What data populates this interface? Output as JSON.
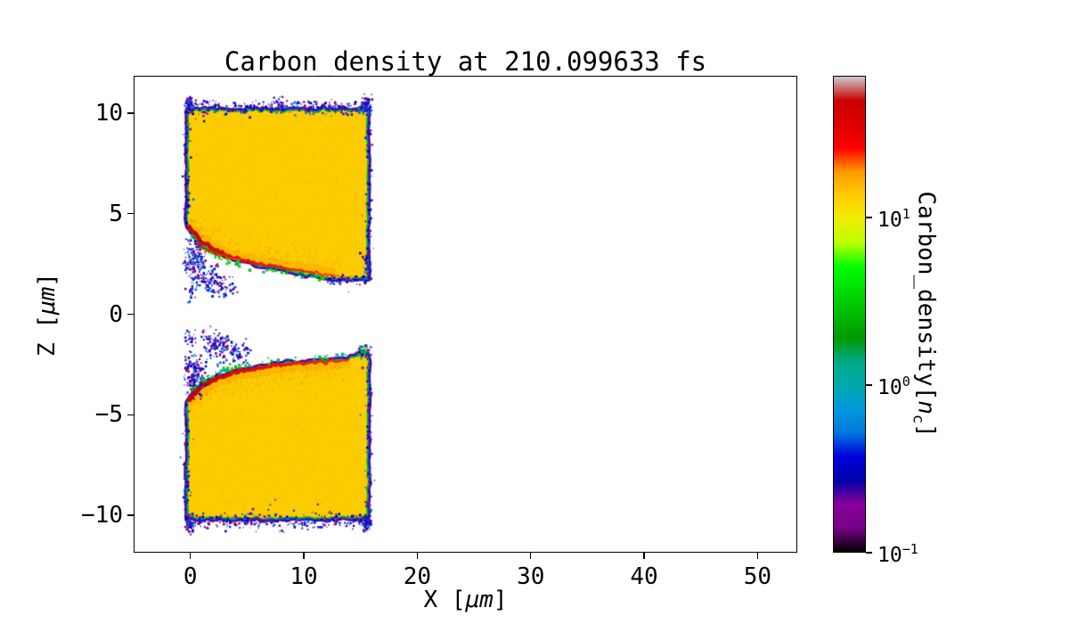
{
  "chart_data": {
    "type": "heatmap",
    "title": "Carbon_density at 210.099633 fs",
    "xlabel": "X [μm]",
    "ylabel": "Z [μm]",
    "xlabel_parts": {
      "prefix": "X [",
      "unit": "μm",
      "suffix": "]"
    },
    "ylabel_parts": {
      "prefix": "Z [",
      "unit": "μm",
      "suffix": "]"
    },
    "xlim": [
      -5,
      53.5
    ],
    "ylim": [
      -11.86,
      11.86
    ],
    "xticks": [
      0,
      10,
      20,
      30,
      40,
      50
    ],
    "yticks": [
      10,
      5,
      0,
      -5,
      -10
    ],
    "grid": false,
    "background": "#ffffff",
    "colorbar": {
      "label_parts": {
        "prefix": "Carbon_density[",
        "var": "n",
        "sub": "c",
        "suffix": "]"
      },
      "scale": "log",
      "vmin": 0.1,
      "vmax": 70,
      "ticks": [
        {
          "label_base": "10",
          "label_exp": "1",
          "value": 10
        },
        {
          "label_base": "10",
          "label_exp": "0",
          "value": 1
        },
        {
          "label_base": "10",
          "label_exp": "−1",
          "value": 0.1
        }
      ],
      "colormap": "nipy_spectral",
      "stops": [
        [
          0,
          "#000000"
        ],
        [
          0.05,
          "#770088"
        ],
        [
          0.1,
          "#880099"
        ],
        [
          0.15,
          "#0000AA"
        ],
        [
          0.2,
          "#0000DD"
        ],
        [
          0.25,
          "#0077DD"
        ],
        [
          0.3,
          "#0099DD"
        ],
        [
          0.35,
          "#00AAAA"
        ],
        [
          0.4,
          "#00AA88"
        ],
        [
          0.45,
          "#009900"
        ],
        [
          0.5,
          "#00BB00"
        ],
        [
          0.55,
          "#00DD00"
        ],
        [
          0.6,
          "#00FF00"
        ],
        [
          0.65,
          "#BBFF00"
        ],
        [
          0.7,
          "#EEEE00"
        ],
        [
          0.75,
          "#FFCC00"
        ],
        [
          0.8,
          "#FF9900"
        ],
        [
          0.85,
          "#FF0000"
        ],
        [
          0.9,
          "#DD0000"
        ],
        [
          0.95,
          "#CC0000"
        ],
        [
          1,
          "#CCCCCC"
        ]
      ]
    },
    "structures": {
      "description": "Two carbon slab targets (~11 n_c interior, x≈0–15.5 μm) separated by a vacuum gap around z≈0. Inner channel surfaces are eroded toward the left with red high-density filaments (~30 n_c) along the channel walls, green/cyan density fall-off fringes at all edges, and sparse low-density (~0.1–0.5 n_c) purple/blue plasma speckle around the borders and in the gap near x<5.",
      "interior_density_nc": 11,
      "palettes": {
        "cold": [
          "#770088",
          "#880099",
          "#0000AA",
          "#0000CC",
          "#2A00C8",
          "#0033CC",
          "#0077DD"
        ],
        "green": [
          "#00BB00",
          "#00DD00",
          "#00AA88",
          "#33CC00",
          "#00AAAA"
        ]
      },
      "interior_noise": {
        "n": 1100,
        "colors": [
          "rgba(255,170,0,0.22)",
          "rgba(255,220,0,0.30)",
          "rgba(250,140,0,0.18)"
        ]
      },
      "edge_glow_noise": {
        "n": 320,
        "color": "255,140,0",
        "alpha_min": 0.15,
        "alpha_max": 0.5
      },
      "blocks": [
        {
          "name": "upper-slab",
          "fill": "#FBCD00",
          "z_far": 10.1,
          "outline": [
            [
              -0.15,
              10.1
            ],
            [
              15.55,
              10.1
            ],
            [
              15.55,
              1.85
            ],
            [
              12.4,
              1.85
            ],
            [
              11.4,
              1.95
            ],
            [
              10.2,
              2.08
            ],
            [
              9.0,
              2.2
            ],
            [
              7.8,
              2.32
            ],
            [
              6.6,
              2.45
            ],
            [
              5.4,
              2.6
            ],
            [
              4.2,
              2.78
            ],
            [
              3.2,
              2.95
            ],
            [
              2.3,
              3.15
            ],
            [
              1.5,
              3.4
            ],
            [
              0.8,
              3.7
            ],
            [
              0.2,
              4.05
            ],
            [
              -0.15,
              4.4
            ]
          ],
          "inner_edge": [
            [
              -0.15,
              4.4
            ],
            [
              0.2,
              4.05
            ],
            [
              0.8,
              3.7
            ],
            [
              1.5,
              3.4
            ],
            [
              2.3,
              3.15
            ],
            [
              3.2,
              2.95
            ],
            [
              4.2,
              2.78
            ],
            [
              5.4,
              2.6
            ],
            [
              6.6,
              2.45
            ],
            [
              7.8,
              2.32
            ],
            [
              9.0,
              2.2
            ],
            [
              10.2,
              2.08
            ],
            [
              11.4,
              1.95
            ],
            [
              12.4,
              1.85
            ],
            [
              15.55,
              1.85
            ]
          ],
          "edge_layers": [
            {
              "color": "#770088",
              "width": 9
            },
            {
              "color": "#1A00C8",
              "width": 6.4
            },
            {
              "color": "#0077DD",
              "width": 4.6
            },
            {
              "color": "#00BB00",
              "width": 2.8
            }
          ]
        },
        {
          "name": "lower-slab",
          "fill": "#FBCD00",
          "z_far": -10.1,
          "outline": [
            [
              -0.15,
              -4.4
            ],
            [
              0.2,
              -4.05
            ],
            [
              0.8,
              -3.72
            ],
            [
              1.6,
              -3.45
            ],
            [
              2.5,
              -3.2
            ],
            [
              3.5,
              -3.0
            ],
            [
              4.6,
              -2.85
            ],
            [
              5.8,
              -2.72
            ],
            [
              7.0,
              -2.6
            ],
            [
              8.2,
              -2.52
            ],
            [
              9.5,
              -2.45
            ],
            [
              10.8,
              -2.4
            ],
            [
              12.0,
              -2.35
            ],
            [
              13.2,
              -2.3
            ],
            [
              14.2,
              -2.25
            ],
            [
              14.8,
              -2.1
            ],
            [
              15.2,
              -1.95
            ],
            [
              15.55,
              -2.05
            ],
            [
              15.55,
              -10.1
            ],
            [
              -0.15,
              -10.1
            ]
          ],
          "inner_edge": [
            [
              -0.15,
              -4.4
            ],
            [
              0.2,
              -4.05
            ],
            [
              0.8,
              -3.72
            ],
            [
              1.6,
              -3.45
            ],
            [
              2.5,
              -3.2
            ],
            [
              3.5,
              -3.0
            ],
            [
              4.6,
              -2.85
            ],
            [
              5.8,
              -2.72
            ],
            [
              7.0,
              -2.6
            ],
            [
              8.2,
              -2.52
            ],
            [
              9.5,
              -2.45
            ],
            [
              10.8,
              -2.4
            ],
            [
              12.0,
              -2.35
            ],
            [
              13.2,
              -2.3
            ],
            [
              14.2,
              -2.25
            ],
            [
              14.8,
              -2.1
            ],
            [
              15.2,
              -1.95
            ],
            [
              15.55,
              -2.05
            ]
          ],
          "edge_layers": [
            {
              "color": "#770088",
              "width": 9
            },
            {
              "color": "#1A00C8",
              "width": 6.4
            },
            {
              "color": "#0077DD",
              "width": 4.6
            },
            {
              "color": "#00BB00",
              "width": 2.8
            }
          ]
        }
      ],
      "filaments": [
        {
          "name": "upper-channel-filament",
          "points": [
            [
              -0.1,
              4.35
            ],
            [
              0.4,
              3.95
            ],
            [
              0.9,
              3.65
            ],
            [
              1.5,
              3.42
            ],
            [
              2.2,
              3.2
            ],
            [
              3.0,
              3.0
            ],
            [
              3.9,
              2.82
            ],
            [
              4.9,
              2.66
            ],
            [
              6.0,
              2.52
            ],
            [
              7.2,
              2.4
            ],
            [
              8.4,
              2.28
            ],
            [
              9.6,
              2.18
            ],
            [
              10.7,
              2.1
            ],
            [
              11.7,
              2.0
            ],
            [
              12.5,
              1.93
            ]
          ],
          "width_start": 4.5,
          "width_end": 1.8,
          "color_start": "#C80000",
          "color_end": "#FF3000",
          "haze": "rgba(255,150,0,0.33)",
          "haze_width": 7,
          "haze_dz": 0.22
        },
        {
          "name": "upper-filament-branch",
          "points": [
            [
              0.6,
              3.5
            ],
            [
              1.4,
              3.22
            ],
            [
              2.3,
              3.0
            ],
            [
              3.4,
              2.85
            ],
            [
              4.4,
              2.7
            ]
          ],
          "width_start": 2.2,
          "width_end": 1.4,
          "color_start": "#E01000",
          "color_end": "#FF4400",
          "haze": null,
          "haze_width": 0,
          "haze_dz": 0
        },
        {
          "name": "upper-filament-tip",
          "points": [
            [
              12.4,
              1.9
            ],
            [
              13.5,
              1.88
            ],
            [
              14.4,
              1.87
            ]
          ],
          "width_start": 1.6,
          "width_end": 1.1,
          "color_start": "#FF5500",
          "color_end": "#FF7700",
          "haze": null,
          "haze_width": 0,
          "haze_dz": 0
        },
        {
          "name": "lower-channel-filament",
          "points": [
            [
              -0.05,
              -4.25
            ],
            [
              0.5,
              -3.85
            ],
            [
              1.1,
              -3.55
            ],
            [
              1.8,
              -3.32
            ],
            [
              2.6,
              -3.12
            ],
            [
              3.6,
              -2.95
            ],
            [
              4.7,
              -2.8
            ],
            [
              5.9,
              -2.68
            ],
            [
              7.1,
              -2.58
            ],
            [
              8.4,
              -2.5
            ],
            [
              9.7,
              -2.44
            ],
            [
              11.0,
              -2.4
            ],
            [
              12.2,
              -2.35
            ],
            [
              13.3,
              -2.3
            ],
            [
              13.9,
              -2.27
            ]
          ],
          "width_start": 5,
          "width_end": 2.2,
          "color_start": "#C80000",
          "color_end": "#FF2800",
          "haze": "rgba(255,150,0,0.33)",
          "haze_width": 8,
          "haze_dz": -0.22
        }
      ],
      "green_bands": [
        {
          "filament": 0,
          "dz": -0.2,
          "spread": 0.12,
          "n": 150,
          "dense_until_x": 4.5
        },
        {
          "filament": 3,
          "dz": 0.2,
          "spread": 0.12,
          "n": 150,
          "dense_until_x": 4.5
        }
      ],
      "speckle_bands": [
        {
          "axis": "h",
          "from": -0.4,
          "to": 15.8,
          "at": 10.28,
          "spread": 0.18,
          "n": 320
        },
        {
          "axis": "v",
          "from": 4.4,
          "to": 10.1,
          "at": -0.33,
          "spread": 0.14,
          "n": 90
        },
        {
          "axis": "v",
          "from": 1.9,
          "to": 10.1,
          "at": 15.72,
          "spread": 0.14,
          "n": 110
        },
        {
          "axis": "h",
          "from": 12.0,
          "to": 15.6,
          "at": 1.7,
          "spread": 0.12,
          "n": 60
        },
        {
          "axis": "h",
          "from": -0.4,
          "to": 15.8,
          "at": -10.28,
          "spread": 0.18,
          "n": 320
        },
        {
          "axis": "v",
          "from": -10.1,
          "to": -4.4,
          "at": -0.33,
          "spread": 0.14,
          "n": 90
        },
        {
          "axis": "v",
          "from": -10.1,
          "to": -2.0,
          "at": 15.72,
          "spread": 0.14,
          "n": 110
        }
      ],
      "speckle_clusters": [
        {
          "cx": -0.1,
          "cz": 10.4,
          "rx": 0.18,
          "rz": 0.22,
          "n": 60,
          "palette": "cold"
        },
        {
          "cx": 15.55,
          "cz": 10.4,
          "rx": 0.22,
          "rz": 0.22,
          "n": 70,
          "palette": "cold"
        },
        {
          "cx": 7.8,
          "cz": 10.45,
          "rx": 0.3,
          "rz": 0.15,
          "n": 30,
          "palette": "cold"
        },
        {
          "cx": 0.35,
          "cz": 2.75,
          "rx": 0.45,
          "rz": 0.5,
          "n": 150,
          "palette": "cold"
        },
        {
          "cx": 1.7,
          "cz": 1.8,
          "rx": 0.55,
          "rz": 0.35,
          "n": 100,
          "palette": "cold"
        },
        {
          "cx": 3.1,
          "cz": 1.35,
          "rx": 0.6,
          "rz": 0.25,
          "n": 40,
          "palette": "cold"
        },
        {
          "cx": 0.15,
          "cz": 1.15,
          "rx": 0.25,
          "rz": 0.25,
          "n": 25,
          "palette": "cold"
        },
        {
          "cx": 15.6,
          "cz": 2.3,
          "rx": 0.18,
          "rz": 0.35,
          "n": 45,
          "palette": "cold"
        },
        {
          "cx": -0.1,
          "cz": -10.4,
          "rx": 0.18,
          "rz": 0.22,
          "n": 60,
          "palette": "cold"
        },
        {
          "cx": 15.55,
          "cz": -10.4,
          "rx": 0.22,
          "rz": 0.22,
          "n": 70,
          "palette": "cold"
        },
        {
          "cx": 0.4,
          "cz": -2.95,
          "rx": 0.45,
          "rz": 0.5,
          "n": 150,
          "palette": "cold"
        },
        {
          "cx": 2.4,
          "cz": -1.55,
          "rx": 0.65,
          "rz": 0.4,
          "n": 140,
          "palette": "cold"
        },
        {
          "cx": 4.3,
          "cz": -1.95,
          "rx": 0.5,
          "rz": 0.3,
          "n": 45,
          "palette": "cold"
        },
        {
          "cx": 0.05,
          "cz": -1.2,
          "rx": 0.25,
          "rz": 0.25,
          "n": 25,
          "palette": "cold"
        },
        {
          "cx": 15.3,
          "cz": -1.85,
          "rx": 0.3,
          "rz": 0.2,
          "n": 50,
          "palette": "mixed"
        }
      ]
    }
  }
}
